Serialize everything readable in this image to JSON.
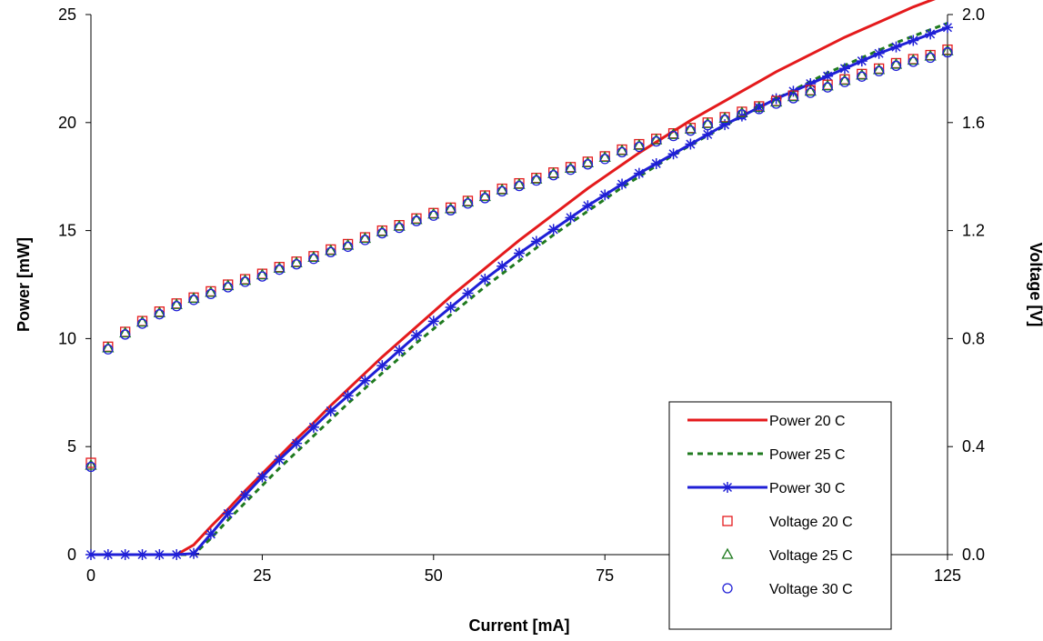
{
  "chart_data": {
    "type": "line",
    "title": "",
    "xlabel": "Current [mA]",
    "ylabel": "Power [mW]",
    "y2label": "Voltage [V]",
    "xlim": [
      0,
      125
    ],
    "ylim": [
      0,
      25
    ],
    "y2lim": [
      0,
      2.0
    ],
    "x_ticks": [
      "0",
      "25",
      "50",
      "75",
      "100",
      "125"
    ],
    "y_ticks": [
      "0",
      "5",
      "10",
      "15",
      "20",
      "25"
    ],
    "y2_ticks": [
      "0.0",
      "0.4",
      "0.8",
      "1.2",
      "1.6",
      "2.0"
    ],
    "grid": false,
    "legend_position": "right",
    "x": [
      0,
      2.5,
      5,
      7.5,
      10,
      12.5,
      15,
      17.5,
      20,
      22.5,
      25,
      27.5,
      30,
      32.5,
      35,
      37.5,
      40,
      42.5,
      45,
      47.5,
      50,
      52.5,
      55,
      57.5,
      60,
      62.5,
      65,
      67.5,
      70,
      72.5,
      75,
      77.5,
      80,
      82.5,
      85,
      87.5,
      90,
      92.5,
      95,
      97.5,
      100,
      102.5,
      105,
      107.5,
      110,
      112.5,
      115,
      117.5,
      120,
      122.5,
      125
    ],
    "series": [
      {
        "name": "Power 20 C",
        "axis": "left",
        "style": "solid",
        "color": "#e41a1c",
        "values": [
          0,
          0,
          0,
          0,
          0,
          0,
          0.45,
          1.3,
          2.1,
          2.95,
          3.75,
          4.55,
          5.35,
          6.1,
          6.9,
          7.65,
          8.4,
          9.15,
          9.85,
          10.55,
          11.25,
          11.95,
          12.6,
          13.25,
          13.9,
          14.55,
          15.15,
          15.75,
          16.35,
          16.95,
          17.5,
          18.05,
          18.6,
          19.1,
          19.6,
          20.1,
          20.55,
          21.0,
          21.45,
          21.9,
          22.35,
          22.75,
          23.15,
          23.55,
          23.95,
          24.3,
          24.65,
          25.0,
          25.35,
          25.65,
          25.95
        ]
      },
      {
        "name": "Power 25 C",
        "axis": "left",
        "style": "dashed",
        "color": "#1f7a1f",
        "values": [
          0,
          0,
          0,
          0,
          0,
          0,
          0,
          0.75,
          1.6,
          2.4,
          3.2,
          4.0,
          4.75,
          5.5,
          6.25,
          7.0,
          7.7,
          8.4,
          9.1,
          9.8,
          10.45,
          11.1,
          11.75,
          12.4,
          13.0,
          13.6,
          14.2,
          14.8,
          15.35,
          15.9,
          16.45,
          17.0,
          17.5,
          18.0,
          18.5,
          18.95,
          19.4,
          19.85,
          20.3,
          20.7,
          21.1,
          21.5,
          21.9,
          22.3,
          22.65,
          23.0,
          23.35,
          23.7,
          24.0,
          24.3,
          24.6
        ]
      },
      {
        "name": "Power 30 C",
        "axis": "left",
        "style": "solid-star",
        "color": "#1f1fd6",
        "values": [
          0,
          0,
          0,
          0,
          0,
          0,
          0.05,
          0.95,
          1.9,
          2.75,
          3.6,
          4.4,
          5.15,
          5.9,
          6.65,
          7.35,
          8.05,
          8.75,
          9.45,
          10.15,
          10.8,
          11.45,
          12.1,
          12.75,
          13.35,
          13.95,
          14.5,
          15.05,
          15.6,
          16.15,
          16.65,
          17.15,
          17.65,
          18.1,
          18.55,
          19.0,
          19.45,
          19.9,
          20.3,
          20.7,
          21.1,
          21.45,
          21.8,
          22.15,
          22.5,
          22.85,
          23.2,
          23.5,
          23.8,
          24.1,
          24.4
        ]
      },
      {
        "name": "Voltage 20 C",
        "axis": "right",
        "style": "marker-square",
        "color": "#e41a1c",
        "values": [
          0.34,
          0.77,
          0.825,
          0.865,
          0.9,
          0.93,
          0.952,
          0.975,
          1.0,
          1.02,
          1.04,
          1.065,
          1.085,
          1.105,
          1.13,
          1.15,
          1.175,
          1.2,
          1.22,
          1.245,
          1.265,
          1.285,
          1.31,
          1.33,
          1.355,
          1.375,
          1.395,
          1.415,
          1.435,
          1.455,
          1.475,
          1.5,
          1.52,
          1.54,
          1.56,
          1.58,
          1.6,
          1.62,
          1.64,
          1.66,
          1.68,
          1.7,
          1.72,
          1.74,
          1.76,
          1.78,
          1.8,
          1.82,
          1.835,
          1.85,
          1.87
        ]
      },
      {
        "name": "Voltage 25 C",
        "axis": "right",
        "style": "marker-triangle",
        "color": "#1f7a1f",
        "values": [
          0.33,
          0.765,
          0.82,
          0.86,
          0.895,
          0.925,
          0.948,
          0.97,
          0.995,
          1.015,
          1.035,
          1.06,
          1.08,
          1.1,
          1.125,
          1.145,
          1.17,
          1.195,
          1.215,
          1.24,
          1.26,
          1.28,
          1.305,
          1.325,
          1.35,
          1.37,
          1.39,
          1.41,
          1.43,
          1.45,
          1.47,
          1.495,
          1.515,
          1.535,
          1.555,
          1.575,
          1.595,
          1.615,
          1.635,
          1.655,
          1.675,
          1.695,
          1.715,
          1.735,
          1.755,
          1.775,
          1.795,
          1.815,
          1.83,
          1.845,
          1.865
        ]
      },
      {
        "name": "Voltage 30 C",
        "axis": "right",
        "style": "marker-circle",
        "color": "#1f1fd6",
        "values": [
          0.325,
          0.76,
          0.815,
          0.855,
          0.89,
          0.92,
          0.943,
          0.965,
          0.99,
          1.01,
          1.03,
          1.055,
          1.075,
          1.095,
          1.12,
          1.14,
          1.165,
          1.19,
          1.21,
          1.235,
          1.255,
          1.275,
          1.3,
          1.32,
          1.345,
          1.365,
          1.385,
          1.405,
          1.425,
          1.445,
          1.465,
          1.49,
          1.51,
          1.53,
          1.55,
          1.57,
          1.59,
          1.61,
          1.63,
          1.65,
          1.67,
          1.69,
          1.71,
          1.73,
          1.75,
          1.77,
          1.79,
          1.81,
          1.825,
          1.84,
          1.86
        ]
      }
    ]
  }
}
